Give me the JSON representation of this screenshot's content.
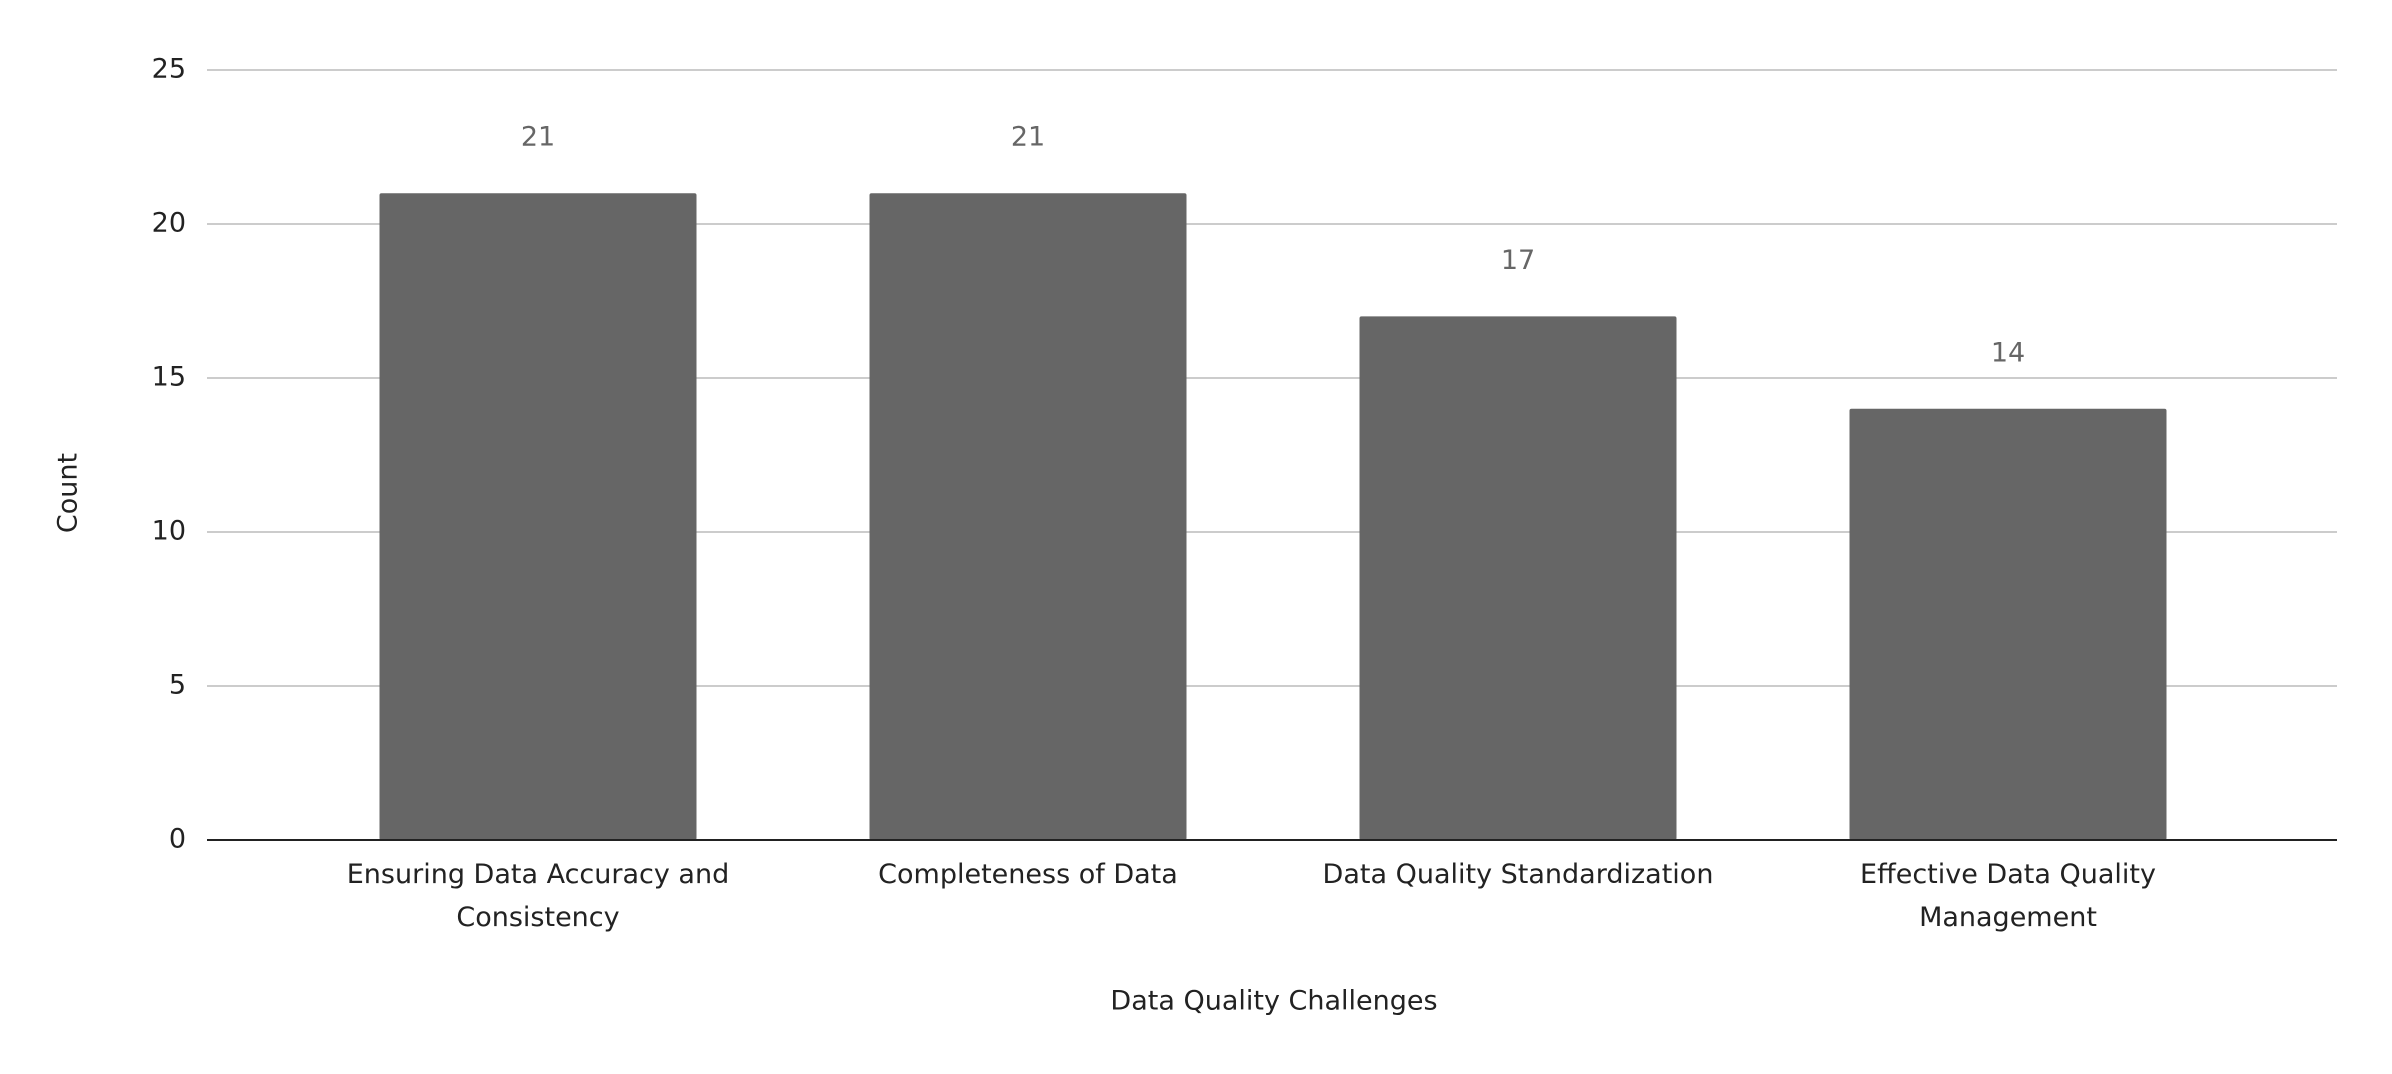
{
  "chart_data": {
    "type": "bar",
    "categories": [
      "Ensuring Data Accuracy and Consistency",
      "Completeness of Data",
      "Data Quality Standardization",
      "Effective Data Quality Management"
    ],
    "values": [
      21,
      21,
      17,
      14
    ],
    "color": "#666666",
    "x_label": "Data Quality Challenges",
    "y_label": "Count",
    "ylim": [
      0,
      25
    ],
    "yticks": [
      0,
      5,
      10,
      15,
      20,
      25
    ],
    "grid": true
  }
}
